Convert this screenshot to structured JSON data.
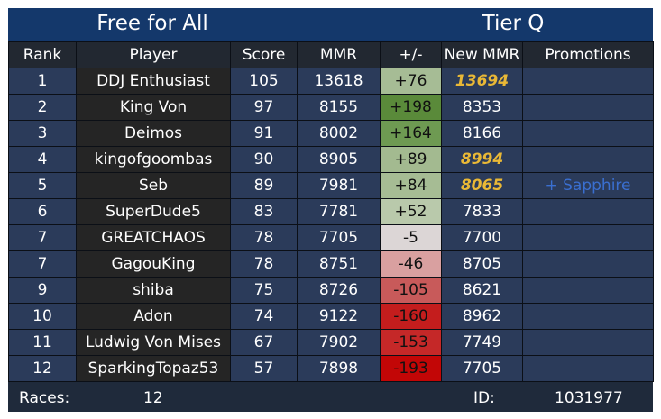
{
  "header": {
    "mode": "Free for All",
    "tier": "Tier Q"
  },
  "columns": [
    "Rank",
    "Player",
    "Score",
    "MMR",
    "+/-",
    "New MMR",
    "Promotions"
  ],
  "rows": [
    {
      "rank": "1",
      "player": "DDJ Enthusiast",
      "score": "105",
      "mmr": "13618",
      "delta": "+76",
      "new_mmr": "13694",
      "new_mmr_highlight": true,
      "promotion": "",
      "delta_color": "#a6bc95"
    },
    {
      "rank": "2",
      "player": "King Von",
      "score": "97",
      "mmr": "8155",
      "delta": "+198",
      "new_mmr": "8353",
      "new_mmr_highlight": false,
      "promotion": "",
      "delta_color": "#5a8a3a"
    },
    {
      "rank": "3",
      "player": "Deimos",
      "score": "91",
      "mmr": "8002",
      "delta": "+164",
      "new_mmr": "8166",
      "new_mmr_highlight": false,
      "promotion": "",
      "delta_color": "#6e9a52"
    },
    {
      "rank": "4",
      "player": "kingofgoombas",
      "score": "90",
      "mmr": "8905",
      "delta": "+89",
      "new_mmr": "8994",
      "new_mmr_highlight": true,
      "promotion": "",
      "delta_color": "#a3ba90"
    },
    {
      "rank": "5",
      "player": "Seb",
      "score": "89",
      "mmr": "7981",
      "delta": "+84",
      "new_mmr": "8065",
      "new_mmr_highlight": true,
      "promotion": "+ Sapphire",
      "delta_color": "#a6bc94"
    },
    {
      "rank": "6",
      "player": "SuperDude5",
      "score": "83",
      "mmr": "7781",
      "delta": "+52",
      "new_mmr": "7833",
      "new_mmr_highlight": false,
      "promotion": "",
      "delta_color": "#b9c9ab"
    },
    {
      "rank": "7",
      "player": "GREATCHAOS",
      "score": "78",
      "mmr": "7705",
      "delta": "-5",
      "new_mmr": "7700",
      "new_mmr_highlight": false,
      "promotion": "",
      "delta_color": "#dcd6d6"
    },
    {
      "rank": "7",
      "player": "GagouKing",
      "score": "78",
      "mmr": "8751",
      "delta": "-46",
      "new_mmr": "8705",
      "new_mmr_highlight": false,
      "promotion": "",
      "delta_color": "#d9a0a0"
    },
    {
      "rank": "9",
      "player": "shiba",
      "score": "75",
      "mmr": "8726",
      "delta": "-105",
      "new_mmr": "8621",
      "new_mmr_highlight": false,
      "promotion": "",
      "delta_color": "#c85a5a"
    },
    {
      "rank": "10",
      "player": "Adon",
      "score": "74",
      "mmr": "9122",
      "delta": "-160",
      "new_mmr": "8962",
      "new_mmr_highlight": false,
      "promotion": "",
      "delta_color": "#c41d1d"
    },
    {
      "rank": "11",
      "player": "Ludwig Von Mises",
      "score": "67",
      "mmr": "7902",
      "delta": "-153",
      "new_mmr": "7749",
      "new_mmr_highlight": false,
      "promotion": "",
      "delta_color": "#c52828"
    },
    {
      "rank": "12",
      "player": "SparkingTopaz53",
      "score": "57",
      "mmr": "7898",
      "delta": "-193",
      "new_mmr": "7705",
      "new_mmr_highlight": false,
      "promotion": "",
      "delta_color": "#c20606"
    }
  ],
  "footer": {
    "races_label": "Races:",
    "races_value": "12",
    "id_label": "ID:",
    "id_value": "1031977"
  },
  "colors": {
    "title_bar": "#14386b",
    "table_background": "#2b3b5a",
    "player_column": "#252525",
    "highlight_text": "#e9b836",
    "promotion_text": "#3a6fd0"
  }
}
